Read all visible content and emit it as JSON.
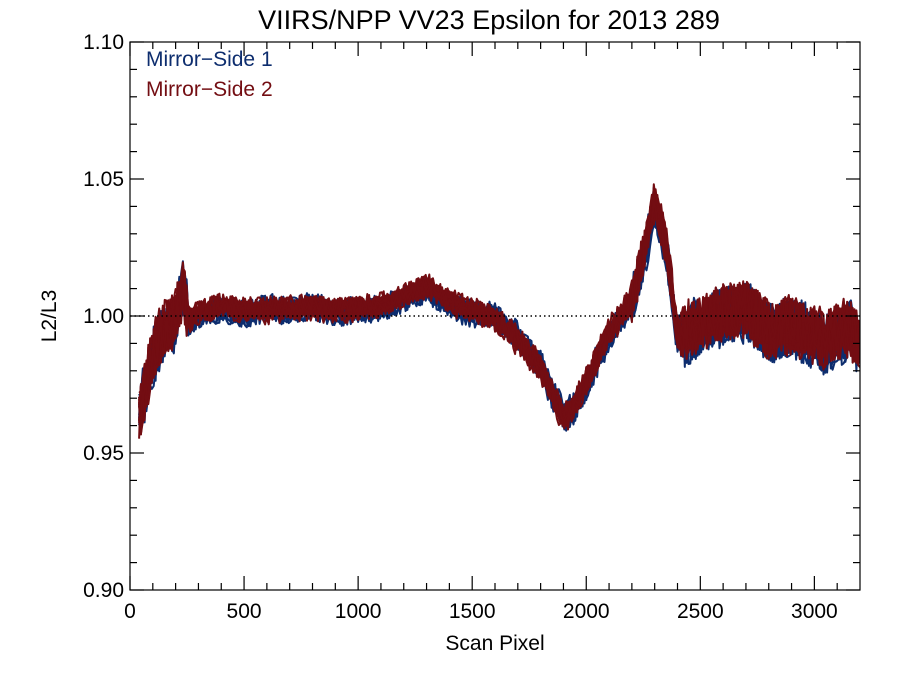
{
  "chart_data": {
    "type": "line",
    "title": "VIIRS/NPP VV23 Epsilon for 2013 289",
    "xlabel": "Scan Pixel",
    "ylabel": "L2/L3",
    "xlim": [
      0,
      3200
    ],
    "ylim": [
      0.9,
      1.1
    ],
    "x_ticks": [
      0,
      500,
      1000,
      1500,
      2000,
      2500,
      3000
    ],
    "x_tick_labels": [
      "0",
      "500",
      "1000",
      "1500",
      "2000",
      "2500",
      "3000"
    ],
    "y_ticks": [
      0.9,
      0.95,
      1.0,
      1.05,
      1.1
    ],
    "y_tick_labels": [
      "0.90",
      "0.95",
      "1.00",
      "1.05",
      "1.10"
    ],
    "reference_line": {
      "y": 1.0,
      "style": "dotted"
    },
    "legend_position": "top-left",
    "series": [
      {
        "name": "Mirror−Side 1",
        "color": "#0d2d6e",
        "curve_count": 12,
        "x": [
          40,
          100,
          160,
          200,
          230,
          260,
          300,
          400,
          500,
          600,
          700,
          800,
          900,
          1000,
          1100,
          1200,
          1300,
          1400,
          1500,
          1600,
          1700,
          1800,
          1850,
          1900,
          1950,
          2000,
          2100,
          2200,
          2250,
          2300,
          2350,
          2400,
          2500,
          2600,
          2700,
          2800,
          2900,
          3000,
          3050,
          3100,
          3150,
          3200
        ],
        "y": [
          0.965,
          0.985,
          0.995,
          0.998,
          1.012,
          0.996,
          1.0,
          1.003,
          1.001,
          1.003,
          1.002,
          1.004,
          1.001,
          1.002,
          1.003,
          1.006,
          1.01,
          1.004,
          1.001,
          1.0,
          0.992,
          0.982,
          0.972,
          0.964,
          0.966,
          0.975,
          0.993,
          1.005,
          1.02,
          1.04,
          1.025,
          0.992,
          0.996,
          1.0,
          1.002,
          0.994,
          0.996,
          0.992,
          0.99,
          0.993,
          0.995,
          0.99
        ]
      },
      {
        "name": "Mirror−Side 2",
        "color": "#730d12",
        "curve_count": 12,
        "x": [
          40,
          100,
          160,
          200,
          230,
          260,
          300,
          400,
          500,
          600,
          700,
          800,
          900,
          1000,
          1100,
          1200,
          1300,
          1400,
          1500,
          1600,
          1700,
          1800,
          1850,
          1900,
          1950,
          2000,
          2100,
          2200,
          2250,
          2300,
          2350,
          2400,
          2500,
          2600,
          2700,
          2800,
          2900,
          3000,
          3050,
          3100,
          3150,
          3200
        ],
        "y": [
          0.963,
          0.987,
          0.997,
          0.999,
          1.01,
          0.998,
          1.001,
          1.004,
          1.002,
          1.002,
          1.003,
          1.003,
          1.002,
          1.003,
          1.004,
          1.007,
          1.011,
          1.005,
          1.002,
          0.999,
          0.991,
          0.981,
          0.971,
          0.963,
          0.967,
          0.976,
          0.994,
          1.006,
          1.022,
          1.042,
          1.026,
          0.993,
          0.997,
          1.001,
          1.003,
          0.995,
          0.997,
          0.993,
          0.991,
          0.994,
          0.996,
          0.991
        ]
      }
    ]
  }
}
